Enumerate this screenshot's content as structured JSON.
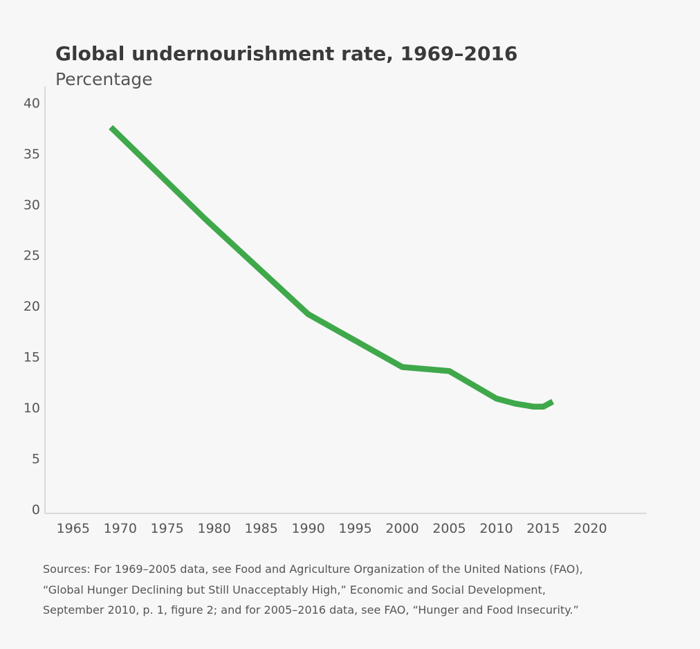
{
  "chart_data": {
    "type": "line",
    "title": "Global undernourishment rate, 1969–2016",
    "subtitle": "Percentage",
    "xlabel": "",
    "ylabel": "Percentage",
    "xlim": [
      1962,
      2026
    ],
    "ylim": [
      0,
      42
    ],
    "xticks": [
      1965,
      1970,
      1975,
      1980,
      1985,
      1990,
      1995,
      2000,
      2005,
      2010,
      2015,
      2020
    ],
    "yticks": [
      0,
      5,
      10,
      15,
      20,
      25,
      30,
      35,
      40
    ],
    "grid": false,
    "series": [
      {
        "name": "Undernourishment rate",
        "color": "#3fa84a",
        "x": [
          1969,
          1979,
          1990,
          2000,
          2005,
          2010,
          2012,
          2014,
          2015,
          2016
        ],
        "y": [
          38,
          29,
          19.6,
          14.4,
          14,
          11.3,
          10.8,
          10.5,
          10.5,
          11
        ]
      }
    ]
  },
  "sources": [
    "Sources: For 1969–2005 data, see Food and Agriculture Organization of the United Nations  (FAO),",
    "“Global Hunger Declining but Still Unacceptably High,” Economic and Social Development,",
    "September 2010, p. 1, figure 2; and for 2005–2016 data, see FAO, “Hunger and Food Insecurity.”"
  ]
}
